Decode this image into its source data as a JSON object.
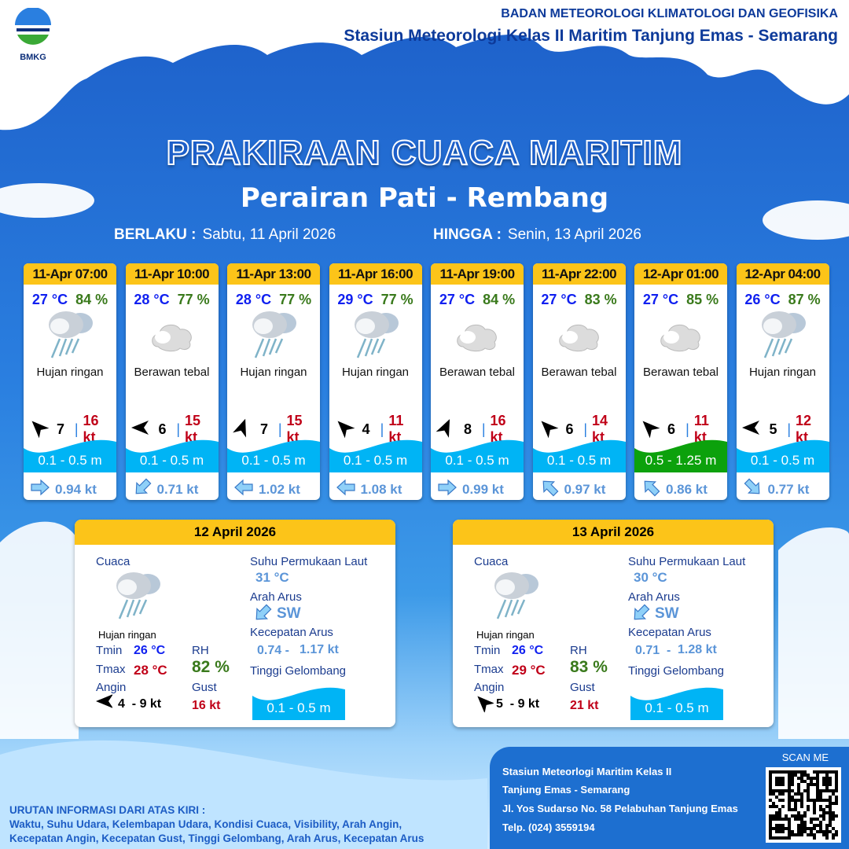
{
  "header": {
    "org": "BADAN METEOROLOGI KLIMATOLOGI DAN GEOFISIKA",
    "station": "Stasiun Meteorologi Kelas II Maritim Tanjung Emas - Semarang",
    "logo_text": "BMKG"
  },
  "title": "PRAKIRAAN CUACA MARITIM",
  "area": "Perairan Pati - Rembang",
  "validity": {
    "from_label": "BERLAKU :",
    "from": "Sabtu, 11 April 2026",
    "to_label": "HINGGA :",
    "to": "Senin, 13 April 2026"
  },
  "colors": {
    "temp": "#1020f0",
    "rh": "#3a7a1c",
    "gust": "#c00018",
    "wave_low": "#00b4f5",
    "wave_mod": "#0ca10c",
    "header": "#fcc419"
  },
  "forecasts": [
    {
      "time": "11-Apr 07:00",
      "temp": "27 °C",
      "rh": "84 %",
      "icon": "light-rain",
      "cond": "Hujan ringan",
      "wind_dir_deg": 315,
      "wind": "7",
      "gust": "16 kt",
      "wave": "0.1 - 0.5 m",
      "wave_level": "low",
      "cur_dir_deg": 90,
      "cur": "0.94 kt"
    },
    {
      "time": "11-Apr 10:00",
      "temp": "28 °C",
      "rh": "77 %",
      "icon": "overcast",
      "cond": "Berawan tebal",
      "wind_dir_deg": 270,
      "wind": "6",
      "gust": "15 kt",
      "wave": "0.1 - 0.5 m",
      "wave_level": "low",
      "cur_dir_deg": 225,
      "cur": "0.71 kt"
    },
    {
      "time": "11-Apr 13:00",
      "temp": "28 °C",
      "rh": "77 %",
      "icon": "light-rain",
      "cond": "Hujan ringan",
      "wind_dir_deg": 20,
      "wind": "7",
      "gust": "15 kt",
      "wave": "0.1 - 0.5 m",
      "wave_level": "low",
      "cur_dir_deg": 270,
      "cur": "1.02 kt"
    },
    {
      "time": "11-Apr 16:00",
      "temp": "29 °C",
      "rh": "77 %",
      "icon": "light-rain",
      "cond": "Hujan ringan",
      "wind_dir_deg": 315,
      "wind": "4",
      "gust": "11 kt",
      "wave": "0.1 - 0.5 m",
      "wave_level": "low",
      "cur_dir_deg": 270,
      "cur": "1.08 kt"
    },
    {
      "time": "11-Apr 19:00",
      "temp": "27 °C",
      "rh": "84 %",
      "icon": "overcast",
      "cond": "Berawan tebal",
      "wind_dir_deg": 25,
      "wind": "8",
      "gust": "16 kt",
      "wave": "0.1 - 0.5 m",
      "wave_level": "low",
      "cur_dir_deg": 90,
      "cur": "0.99 kt"
    },
    {
      "time": "11-Apr 22:00",
      "temp": "27 °C",
      "rh": "83 %",
      "icon": "overcast",
      "cond": "Berawan tebal",
      "wind_dir_deg": 315,
      "wind": "6",
      "gust": "14 kt",
      "wave": "0.1 - 0.5 m",
      "wave_level": "low",
      "cur_dir_deg": 315,
      "cur": "0.97 kt"
    },
    {
      "time": "12-Apr 01:00",
      "temp": "27 °C",
      "rh": "85 %",
      "icon": "overcast",
      "cond": "Berawan tebal",
      "wind_dir_deg": 315,
      "wind": "6",
      "gust": "11 kt",
      "wave": "0.5 - 1.25 m",
      "wave_level": "moderate",
      "cur_dir_deg": 315,
      "cur": "0.86 kt"
    },
    {
      "time": "12-Apr 04:00",
      "temp": "26 °C",
      "rh": "87 %",
      "icon": "light-rain",
      "cond": "Hujan ringan",
      "wind_dir_deg": 270,
      "wind": "5",
      "gust": "12 kt",
      "wave": "0.1 - 0.5 m",
      "wave_level": "low",
      "cur_dir_deg": 135,
      "cur": "0.77 kt"
    }
  ],
  "daily": [
    {
      "date": "12 April 2026",
      "cuaca_label": "Cuaca",
      "cond": "Hujan ringan",
      "tmin_label": "Tmin",
      "tmin": "26 °C",
      "tmax_label": "Tmax",
      "tmax": "28 °C",
      "rh_label": "RH",
      "rh": "82 %",
      "angin_label": "Angin",
      "wind_dir_deg": 270,
      "wind": "4  - 9 kt",
      "gust_label": "Gust",
      "gust": "16 kt",
      "sst_label": "Suhu Permukaan Laut",
      "sst": "31 °C",
      "cur_dir_label": "Arah Arus",
      "cur_dir": "SW",
      "cur_dir_deg": 225,
      "cur_speed_label": "Kecepatan Arus",
      "cur_min": "0.74 -",
      "cur_max": "1.17 kt",
      "wave_label": "Tinggi Gelombang",
      "wave": "0.1 - 0.5 m"
    },
    {
      "date": "13 April 2026",
      "cuaca_label": "Cuaca",
      "cond": "Hujan ringan",
      "tmin_label": "Tmin",
      "tmin": "26 °C",
      "tmax_label": "Tmax",
      "tmax": "29 °C",
      "rh_label": "RH",
      "rh": "83 %",
      "angin_label": "Angin",
      "wind_dir_deg": 315,
      "wind": "5  - 9 kt",
      "gust_label": "Gust",
      "gust": "21 kt",
      "sst_label": "Suhu Permukaan Laut",
      "sst": "30 °C",
      "cur_dir_label": "Arah Arus",
      "cur_dir": "SW",
      "cur_dir_deg": 225,
      "cur_speed_label": "Kecepatan Arus",
      "cur_min": "0.71  -",
      "cur_max": "1.28 kt",
      "wave_label": "Tinggi Gelombang",
      "wave": "0.1 - 0.5 m"
    }
  ],
  "footer": {
    "legend_title": "URUTAN INFORMASI DARI ATAS KIRI :",
    "legend_line1": "Waktu, Suhu Udara, Kelembapan Udara, Kondisi Cuaca, Visibility, Arah Angin,",
    "legend_line2": "Kecepatan Angin, Kecepatan Gust, Tinggi Gelombang, Arah Arus, Kecepatan Arus",
    "info1": "Stasiun Meteorlogi Maritim Kelas II",
    "info2": "Tanjung Emas - Semarang",
    "info3": "Jl. Yos Sudarso No. 58 Pelabuhan Tanjung Emas",
    "info4": "Telp. (024) 3559194",
    "scan": "SCAN ME"
  }
}
